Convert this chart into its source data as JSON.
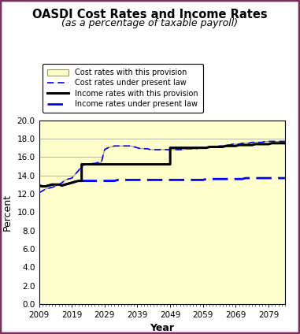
{
  "title": "OASDI Cost Rates and Income Rates",
  "subtitle": "(as a percentage of taxable payroll)",
  "xlabel": "Year",
  "ylabel": "Percent",
  "ylim": [
    0.0,
    20.0
  ],
  "xlim": [
    2009,
    2084
  ],
  "yticks": [
    0.0,
    2.0,
    4.0,
    6.0,
    8.0,
    10.0,
    12.0,
    14.0,
    16.0,
    18.0,
    20.0
  ],
  "xticks": [
    2009,
    2019,
    2029,
    2039,
    2049,
    2059,
    2069,
    2079
  ],
  "bg_color": "#ffffcc",
  "fig_bg_color": "#ffffff",
  "border_color": "#7b2d5e",
  "legend_labels": [
    "Cost rates with this provision",
    "Cost rates under present law",
    "Income rates with this provision",
    "Income rates under present law"
  ],
  "cost_provision_years": [
    2009,
    2010,
    2011,
    2012,
    2013,
    2014,
    2015,
    2016,
    2017,
    2018,
    2019,
    2020,
    2021,
    2022,
    2023,
    2024,
    2025,
    2026,
    2027,
    2028,
    2029,
    2030,
    2031,
    2032,
    2033,
    2034,
    2035,
    2036,
    2037,
    2038,
    2039,
    2040,
    2041,
    2042,
    2043,
    2044,
    2045,
    2046,
    2047,
    2048,
    2049,
    2050,
    2051,
    2052,
    2053,
    2054,
    2055,
    2056,
    2057,
    2058,
    2059,
    2060,
    2061,
    2062,
    2063,
    2064,
    2065,
    2066,
    2067,
    2068,
    2069,
    2070,
    2071,
    2072,
    2073,
    2074,
    2075,
    2076,
    2077,
    2078,
    2079,
    2080,
    2081,
    2082,
    2083,
    2084
  ],
  "cost_provision_values": [
    12.1,
    12.3,
    12.5,
    12.6,
    12.7,
    12.8,
    13.0,
    13.2,
    13.5,
    13.6,
    13.7,
    14.1,
    14.5,
    15.0,
    15.2,
    15.2,
    15.3,
    15.3,
    15.4,
    15.4,
    16.8,
    17.0,
    17.1,
    17.2,
    17.2,
    17.2,
    17.2,
    17.2,
    17.2,
    17.1,
    17.0,
    16.9,
    16.9,
    16.9,
    16.8,
    16.8,
    16.8,
    16.8,
    16.8,
    16.8,
    16.8,
    16.8,
    16.8,
    16.8,
    16.8,
    16.9,
    16.9,
    16.9,
    16.9,
    17.0,
    17.0,
    17.0,
    17.1,
    17.1,
    17.1,
    17.2,
    17.2,
    17.3,
    17.3,
    17.4,
    17.4,
    17.4,
    17.5,
    17.5,
    17.5,
    17.6,
    17.6,
    17.6,
    17.6,
    17.7,
    17.7,
    17.7,
    17.7,
    17.7,
    17.7,
    17.7
  ],
  "cost_present_years": [
    2009,
    2010,
    2011,
    2012,
    2013,
    2014,
    2015,
    2016,
    2017,
    2018,
    2019,
    2020,
    2021,
    2022,
    2023,
    2024,
    2025,
    2026,
    2027,
    2028,
    2029,
    2030,
    2031,
    2032,
    2033,
    2034,
    2035,
    2036,
    2037,
    2038,
    2039,
    2040,
    2041,
    2042,
    2043,
    2044,
    2045,
    2046,
    2047,
    2048,
    2049,
    2050,
    2051,
    2052,
    2053,
    2054,
    2055,
    2056,
    2057,
    2058,
    2059,
    2060,
    2061,
    2062,
    2063,
    2064,
    2065,
    2066,
    2067,
    2068,
    2069,
    2070,
    2071,
    2072,
    2073,
    2074,
    2075,
    2076,
    2077,
    2078,
    2079,
    2080,
    2081,
    2082,
    2083,
    2084
  ],
  "cost_present_values": [
    12.1,
    12.3,
    12.5,
    12.6,
    12.7,
    12.8,
    13.0,
    13.2,
    13.5,
    13.6,
    13.7,
    14.1,
    14.5,
    15.0,
    15.2,
    15.2,
    15.3,
    15.3,
    15.4,
    15.4,
    16.8,
    17.0,
    17.1,
    17.2,
    17.2,
    17.2,
    17.2,
    17.2,
    17.2,
    17.1,
    17.0,
    16.9,
    16.9,
    16.9,
    16.8,
    16.8,
    16.8,
    16.8,
    16.8,
    16.8,
    16.8,
    16.8,
    16.8,
    16.8,
    16.8,
    16.9,
    16.9,
    16.9,
    16.9,
    17.0,
    17.0,
    17.0,
    17.1,
    17.1,
    17.1,
    17.2,
    17.2,
    17.3,
    17.3,
    17.4,
    17.4,
    17.4,
    17.5,
    17.5,
    17.5,
    17.6,
    17.6,
    17.6,
    17.6,
    17.7,
    17.7,
    17.7,
    17.7,
    17.7,
    17.7,
    17.7
  ],
  "income_provision_x": [
    2009,
    2010,
    2011,
    2012,
    2013,
    2014,
    2015,
    2016,
    2017,
    2018,
    2019,
    2020,
    2021,
    2022,
    2022,
    2049,
    2049,
    2050,
    2051,
    2052,
    2053,
    2054,
    2055,
    2056,
    2057,
    2058,
    2059,
    2060,
    2061,
    2062,
    2063,
    2064,
    2065,
    2066,
    2067,
    2068,
    2069,
    2070,
    2071,
    2072,
    2073,
    2074,
    2075,
    2076,
    2077,
    2078,
    2079,
    2080,
    2081,
    2082,
    2083,
    2084
  ],
  "income_provision_y": [
    12.9,
    12.8,
    12.8,
    12.9,
    13.0,
    13.0,
    13.0,
    12.9,
    13.0,
    13.1,
    13.2,
    13.3,
    13.4,
    13.4,
    15.2,
    15.2,
    17.0,
    17.0,
    17.0,
    17.0,
    17.0,
    17.0,
    17.0,
    17.0,
    17.0,
    17.0,
    17.0,
    17.0,
    17.1,
    17.1,
    17.1,
    17.1,
    17.1,
    17.2,
    17.2,
    17.2,
    17.2,
    17.3,
    17.3,
    17.3,
    17.3,
    17.3,
    17.4,
    17.4,
    17.4,
    17.4,
    17.4,
    17.5,
    17.5,
    17.5,
    17.5,
    17.5
  ],
  "income_present_x": [
    2009,
    2010,
    2011,
    2012,
    2013,
    2014,
    2015,
    2016,
    2017,
    2018,
    2019,
    2020,
    2021,
    2022,
    2023,
    2024,
    2025,
    2026,
    2027,
    2028,
    2029,
    2030,
    2031,
    2032,
    2033,
    2034,
    2035,
    2036,
    2037,
    2038,
    2039,
    2040,
    2041,
    2042,
    2043,
    2044,
    2045,
    2046,
    2047,
    2048,
    2049,
    2050,
    2051,
    2052,
    2053,
    2054,
    2055,
    2056,
    2057,
    2058,
    2059,
    2060,
    2061,
    2062,
    2063,
    2064,
    2065,
    2066,
    2067,
    2068,
    2069,
    2070,
    2071,
    2072,
    2073,
    2074,
    2075,
    2076,
    2077,
    2078,
    2079,
    2080,
    2081,
    2082,
    2083,
    2084
  ],
  "income_present_y": [
    12.9,
    12.8,
    12.8,
    12.9,
    13.0,
    13.0,
    13.0,
    12.9,
    13.0,
    13.1,
    13.2,
    13.3,
    13.4,
    13.4,
    13.4,
    13.4,
    13.4,
    13.4,
    13.4,
    13.4,
    13.4,
    13.4,
    13.4,
    13.4,
    13.5,
    13.5,
    13.5,
    13.5,
    13.5,
    13.5,
    13.5,
    13.5,
    13.5,
    13.5,
    13.5,
    13.5,
    13.5,
    13.5,
    13.5,
    13.5,
    13.5,
    13.5,
    13.5,
    13.5,
    13.5,
    13.5,
    13.5,
    13.5,
    13.5,
    13.5,
    13.5,
    13.6,
    13.6,
    13.6,
    13.6,
    13.6,
    13.6,
    13.6,
    13.6,
    13.6,
    13.6,
    13.6,
    13.6,
    13.7,
    13.7,
    13.7,
    13.7,
    13.7,
    13.7,
    13.7,
    13.7,
    13.7,
    13.7,
    13.7,
    13.7,
    13.7
  ]
}
